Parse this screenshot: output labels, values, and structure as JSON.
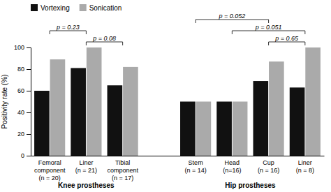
{
  "chart_data": {
    "type": "bar",
    "categories": [
      "Femoral\ncomponent\n(n = 20)",
      "Liner\n(n = 21)",
      "Tibial\ncomponent\n(n = 17)",
      "Stem\n(n = 14)",
      "Head\n(n=16)",
      "Cup\n(n = 16)",
      "Liner\n(n = 8)"
    ],
    "series": [
      {
        "name": "Vortexing",
        "color": "#111111",
        "values": [
          60,
          81,
          65,
          50,
          50,
          69,
          63
        ]
      },
      {
        "name": "Sonication",
        "color": "#aaaaaa",
        "values": [
          89,
          100,
          82,
          50,
          50,
          87,
          100
        ]
      }
    ],
    "ylabel": "Positivity rate (%)",
    "ylim": [
      0,
      100
    ],
    "yticks": [
      0,
      20,
      40,
      60,
      80,
      100
    ],
    "grid": false,
    "legend": "upper left",
    "category_groups": [
      {
        "label": "Knee prostheses",
        "from": 0,
        "to": 2
      },
      {
        "label": "Hip prostheses",
        "from": 3,
        "to": 6
      }
    ],
    "annotations": [
      {
        "text": "p = 0.23",
        "from": 0,
        "to": 1
      },
      {
        "text": "p = 0.08",
        "from": 1,
        "to": 2
      },
      {
        "text": "p = 0.052",
        "from": 3,
        "to": 5
      },
      {
        "text": "p = 0.051",
        "from": 4,
        "to": 6
      },
      {
        "text": "p = 0.65",
        "from": 5,
        "to": 6
      }
    ]
  }
}
